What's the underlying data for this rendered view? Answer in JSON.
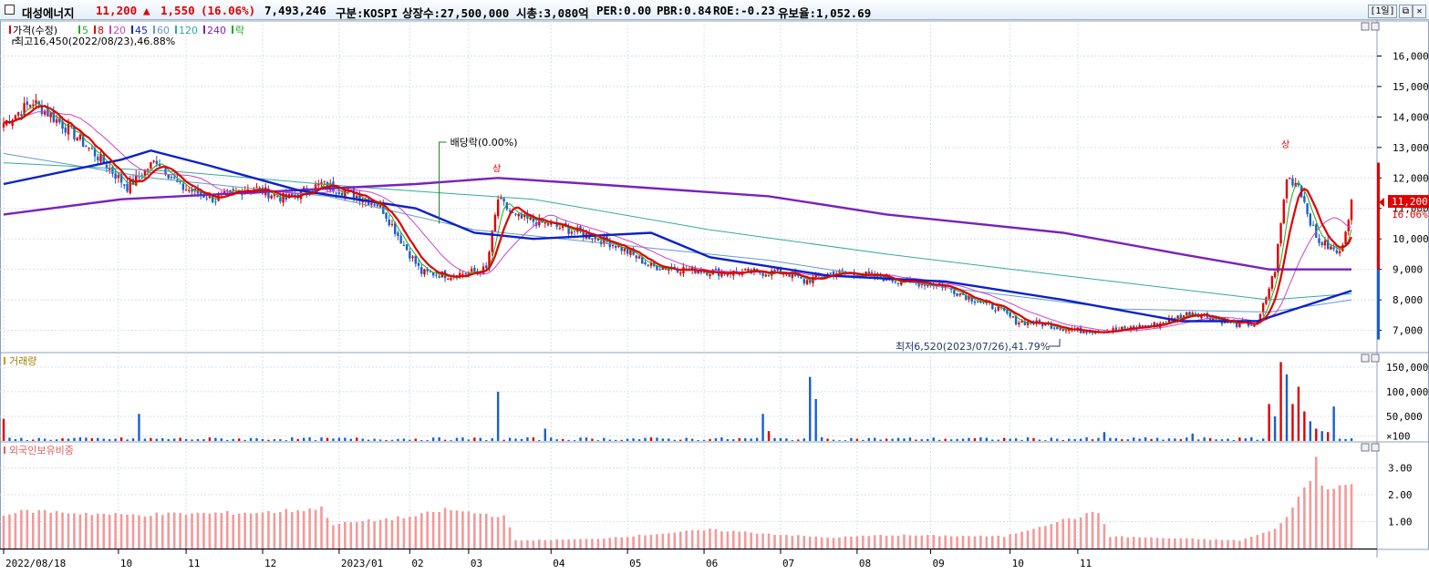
{
  "header": {
    "name": "대성에너지",
    "price": "11,200",
    "change_arrow": "▲",
    "change": "1,550",
    "change_pct": "(16.06%)",
    "volume": "7,493,246",
    "market": "구분:KOSPI",
    "listed": "상장수:27,500,000",
    "mcap": "시총:3,080억",
    "per": "PER:0.00",
    "pbr": "PBR:0.84",
    "roe": "ROE:-0.23",
    "float": "유보율:1,052.69",
    "period_button": "[1일]",
    "restore_icon": "⧉",
    "close_icon": "✕"
  },
  "colors": {
    "up": "#e00000",
    "down": "#1a5fcc",
    "ma5": "#22aa22",
    "ma8": "#e00000",
    "ma20": "#cc44cc",
    "ma45": "#0a22c8",
    "ma60": "#6699cc",
    "ma120": "#33aa99",
    "ma240": "#7a22bb",
    "volume_up": "#e00000",
    "volume_down": "#1a5fcc",
    "foreign": "#f29a9a",
    "grid": "#d6e0ec"
  },
  "chart_data": {
    "type": "candlestick",
    "legend": [
      {
        "label": "가격(수정)",
        "color": "#e00000"
      },
      {
        "label": "5",
        "color": "#22aa22"
      },
      {
        "label": "8",
        "color": "#e00000"
      },
      {
        "label": "20",
        "color": "#cc44cc"
      },
      {
        "label": "45",
        "color": "#0a22c8"
      },
      {
        "label": "60",
        "color": "#6699cc"
      },
      {
        "label": "120",
        "color": "#33aa99"
      },
      {
        "label": "240",
        "color": "#7a22bb"
      },
      {
        "label": "락",
        "color": "#22aa22"
      }
    ],
    "price_axis": {
      "min": 6300,
      "max": 17000,
      "ticks": [
        "16,000",
        "15,000",
        "14,000",
        "13,000",
        "12,000",
        "11,000",
        "10,000",
        "9,000",
        "8,000",
        "7,000"
      ]
    },
    "annotations": {
      "high": "최고16,450(2022/08/23),46.88%",
      "low": "최저6,520(2023/07/26),41.79%",
      "dividend": "배당락(0.00%)",
      "up_limit_1": "상",
      "up_limit_2": "상",
      "current_price": "11,200",
      "current_pct": "16.06%"
    },
    "x_ticks": [
      "2022/08/18",
      "10",
      "11",
      "12",
      "2023/01",
      "02",
      "03",
      "04",
      "05",
      "06",
      "07",
      "08",
      "09",
      "10",
      "11"
    ],
    "anchors": [
      [
        0,
        13800
      ],
      [
        10,
        14500
      ],
      [
        22,
        13600
      ],
      [
        32,
        12700
      ],
      [
        42,
        11700
      ],
      [
        52,
        12600
      ],
      [
        60,
        11700
      ],
      [
        72,
        11300
      ],
      [
        84,
        11700
      ],
      [
        96,
        11300
      ],
      [
        108,
        11800
      ],
      [
        118,
        11500
      ],
      [
        128,
        11100
      ],
      [
        136,
        9800
      ],
      [
        142,
        8900
      ],
      [
        152,
        8800
      ],
      [
        164,
        9000
      ],
      [
        168,
        11300
      ],
      [
        174,
        10700
      ],
      [
        184,
        10500
      ],
      [
        196,
        10200
      ],
      [
        208,
        9800
      ],
      [
        220,
        9100
      ],
      [
        232,
        9000
      ],
      [
        244,
        8900
      ],
      [
        256,
        8900
      ],
      [
        266,
        8900
      ],
      [
        272,
        8600
      ],
      [
        282,
        8900
      ],
      [
        294,
        8800
      ],
      [
        306,
        8600
      ],
      [
        318,
        8500
      ],
      [
        330,
        8000
      ],
      [
        338,
        7700
      ],
      [
        344,
        7300
      ],
      [
        354,
        7200
      ],
      [
        364,
        7000
      ],
      [
        378,
        7000
      ],
      [
        392,
        7200
      ],
      [
        404,
        7600
      ],
      [
        418,
        7200
      ],
      [
        426,
        7200
      ],
      [
        432,
        9000
      ],
      [
        436,
        12000
      ],
      [
        440,
        11800
      ],
      [
        446,
        10000
      ],
      [
        454,
        9500
      ],
      [
        458,
        11200
      ]
    ],
    "candles_note": "458 trading days; closes interpolated from anchors",
    "ma240": [
      [
        0,
        10800
      ],
      [
        40,
        11300
      ],
      [
        100,
        11600
      ],
      [
        140,
        11800
      ],
      [
        168,
        12000
      ],
      [
        200,
        11800
      ],
      [
        260,
        11400
      ],
      [
        300,
        10800
      ],
      [
        360,
        10200
      ],
      [
        400,
        9500
      ],
      [
        430,
        9000
      ],
      [
        458,
        9000
      ]
    ],
    "ma120": [
      [
        0,
        12500
      ],
      [
        60,
        12200
      ],
      [
        120,
        11700
      ],
      [
        180,
        11300
      ],
      [
        240,
        10300
      ],
      [
        300,
        9500
      ],
      [
        360,
        8800
      ],
      [
        430,
        8000
      ],
      [
        458,
        8200
      ]
    ],
    "ma60": [
      [
        0,
        12800
      ],
      [
        50,
        12000
      ],
      [
        110,
        11400
      ],
      [
        160,
        10300
      ],
      [
        200,
        9900
      ],
      [
        260,
        9300
      ],
      [
        320,
        8400
      ],
      [
        380,
        7700
      ],
      [
        430,
        7600
      ],
      [
        458,
        8000
      ]
    ],
    "ma45": [
      [
        0,
        11800
      ],
      [
        40,
        12600
      ],
      [
        50,
        12900
      ],
      [
        70,
        12400
      ],
      [
        100,
        11600
      ],
      [
        140,
        11000
      ],
      [
        160,
        10200
      ],
      [
        180,
        10000
      ],
      [
        220,
        10200
      ],
      [
        240,
        9400
      ],
      [
        280,
        8800
      ],
      [
        320,
        8600
      ],
      [
        360,
        8000
      ],
      [
        400,
        7300
      ],
      [
        426,
        7300
      ],
      [
        458,
        8300
      ]
    ],
    "volume": {
      "label": "거래량",
      "axis_ticks": [
        "150,000",
        "100,000",
        "50,000",
        "×100"
      ],
      "max": 170000,
      "spikes": [
        [
          0,
          45000
        ],
        [
          5,
          75000
        ],
        [
          46,
          55000
        ],
        [
          168,
          100000
        ],
        [
          169,
          38000
        ],
        [
          184,
          25000
        ],
        [
          258,
          55000
        ],
        [
          260,
          20000
        ],
        [
          274,
          130000
        ],
        [
          276,
          85000
        ],
        [
          374,
          18000
        ],
        [
          404,
          15000
        ],
        [
          430,
          75000
        ],
        [
          432,
          50000
        ],
        [
          434,
          160000
        ],
        [
          436,
          135000
        ],
        [
          438,
          75000
        ],
        [
          440,
          110000
        ],
        [
          442,
          60000
        ],
        [
          444,
          40000
        ],
        [
          446,
          25000
        ],
        [
          448,
          20000
        ],
        [
          450,
          18000
        ],
        [
          452,
          70000
        ]
      ]
    },
    "foreign": {
      "label": "외국인보유비중",
      "axis_ticks": [
        "3.00",
        "2.00",
        "1.00"
      ],
      "max": 3.8,
      "anchors": [
        [
          0,
          1.3
        ],
        [
          10,
          1.4
        ],
        [
          40,
          1.25
        ],
        [
          90,
          1.35
        ],
        [
          108,
          1.5
        ],
        [
          112,
          0.9
        ],
        [
          140,
          1.2
        ],
        [
          150,
          1.45
        ],
        [
          170,
          1.2
        ],
        [
          174,
          0.3
        ],
        [
          200,
          0.35
        ],
        [
          240,
          0.7
        ],
        [
          280,
          0.4
        ],
        [
          300,
          0.5
        ],
        [
          340,
          0.45
        ],
        [
          356,
          0.95
        ],
        [
          372,
          1.35
        ],
        [
          376,
          0.45
        ],
        [
          420,
          0.3
        ],
        [
          432,
          0.7
        ],
        [
          438,
          1.5
        ],
        [
          444,
          2.6
        ],
        [
          446,
          3.4
        ],
        [
          448,
          2.3
        ],
        [
          452,
          2.35
        ]
      ]
    }
  }
}
